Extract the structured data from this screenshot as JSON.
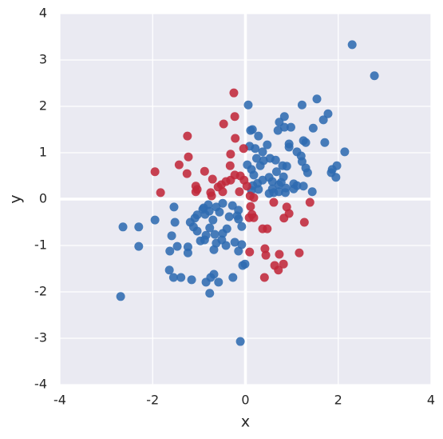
{
  "chart_data": {
    "type": "scatter",
    "x_label": "x",
    "y_label": "y",
    "xlim": [
      -4,
      4
    ],
    "ylim": [
      -4,
      4
    ],
    "xticks": [
      -4,
      -2,
      0,
      2,
      4
    ],
    "yticks": [
      -4,
      -3,
      -2,
      -1,
      0,
      1,
      2,
      3,
      4
    ],
    "xgrid": [
      -4,
      -2,
      0,
      2,
      4
    ],
    "grid": true,
    "zero_lines": true,
    "series": [
      {
        "color": "#2f6bb0",
        "x": [
          2.3,
          2.78,
          0.06,
          1.54,
          1.22,
          1.78,
          0.84,
          1.68,
          0.15,
          0.11,
          0.73,
          0.7,
          0.84,
          0.98,
          1.46,
          1.25,
          1.3,
          1.71,
          0.28,
          0.47,
          0.94,
          0.94,
          0.09,
          0.21,
          0.37,
          0.53,
          1.11,
          1.2,
          2.14,
          0.24,
          0.39,
          0.65,
          0.04,
          0.13,
          0.32,
          0.8,
          0.89,
          1.22,
          1.3,
          1.34,
          1.87,
          1.97,
          1.85,
          1.95,
          0.67,
          0.82,
          0.51,
          0.37,
          0.18,
          0.58,
          0.72,
          0.77,
          1.04,
          1.11,
          1.25,
          0.87,
          1.04,
          0.16,
          0.26,
          0.28,
          0.13,
          0.58,
          0.72,
          0.61,
          0.86,
          0.51,
          1.44,
          -0.9,
          -0.92,
          -0.8,
          -0.78,
          -0.63,
          -0.49,
          -0.28,
          -0.18,
          -0.15,
          -0.15,
          -0.35,
          -0.56,
          -0.7,
          -0.87,
          -1.04,
          -1.09,
          -1.19,
          -1.54,
          -1.52,
          -1.95,
          -2.64,
          -2.3,
          -2.3,
          -2.69,
          -1.59,
          -1.47,
          -1.63,
          -1.24,
          -1.24,
          -1.04,
          -0.97,
          -1.12,
          -0.77,
          -0.66,
          -0.49,
          -0.4,
          -0.08,
          -0.23,
          -0.08,
          -0.15,
          -0.51,
          -0.63,
          -0.42,
          -0.68,
          -0.85,
          -0.88,
          -0.01,
          -0.06,
          -1.64,
          -1.55,
          -1.39,
          -1.16,
          -0.68,
          -0.75,
          -0.85,
          -0.58,
          -0.27,
          -0.77,
          -0.11
        ],
        "y": [
          3.33,
          2.66,
          2.03,
          2.16,
          2.03,
          1.84,
          1.78,
          1.71,
          1.5,
          1.48,
          1.66,
          1.48,
          1.55,
          1.55,
          1.53,
          1.26,
          1.22,
          1.22,
          1.36,
          1.17,
          1.19,
          1.12,
          1.14,
          1.09,
          1.02,
          0.88,
          1.02,
          0.93,
          1.02,
          0.88,
          0.83,
          0.84,
          0.74,
          0.64,
          0.72,
          0.72,
          0.71,
          0.81,
          0.67,
          0.57,
          0.64,
          0.72,
          0.57,
          0.47,
          0.59,
          0.48,
          0.47,
          0.41,
          0.52,
          0.38,
          0.31,
          0.36,
          0.33,
          0.29,
          0.28,
          0.24,
          0.22,
          0.29,
          0.34,
          0.21,
          0.19,
          0.22,
          0.16,
          0.14,
          0.14,
          0.12,
          0.16,
          -0.19,
          -0.22,
          -0.12,
          -0.26,
          -0.17,
          -0.09,
          -0.14,
          -0.36,
          -0.24,
          -0.43,
          -0.38,
          -0.28,
          -0.45,
          -0.33,
          -0.34,
          -0.41,
          -0.5,
          -0.17,
          -0.5,
          -0.45,
          -0.6,
          -0.6,
          -1.02,
          -2.1,
          -0.79,
          -1.02,
          -1.12,
          -1.03,
          -1.16,
          -0.69,
          -0.9,
          -0.6,
          -0.62,
          -0.76,
          -0.74,
          -0.64,
          -0.59,
          -0.93,
          -0.98,
          -1.12,
          -0.88,
          -0.95,
          -1.0,
          -1.09,
          -0.78,
          -0.88,
          -1.4,
          -1.43,
          -1.53,
          -1.69,
          -1.69,
          -1.74,
          -1.62,
          -1.69,
          -1.79,
          -1.79,
          -1.69,
          -2.03,
          -3.07
        ]
      },
      {
        "color": "#c0283a",
        "x": [
          -0.25,
          -0.47,
          -0.23,
          -1.25,
          -0.22,
          -1.23,
          -0.32,
          -1.43,
          -0.33,
          -0.04,
          -1.95,
          -1.26,
          -0.88,
          -0.71,
          -1.83,
          -1.07,
          -1.04,
          -1.07,
          -0.75,
          -0.52,
          -0.42,
          -0.32,
          -0.23,
          -0.11,
          -0.03,
          -0.59,
          -0.13,
          -0.49,
          -0.73,
          0.03,
          0.1,
          0.18,
          0.11,
          0.14,
          0.08,
          0.18,
          0.61,
          0.89,
          0.94,
          0.83,
          1.39,
          1.27,
          0.37,
          0.47,
          0.09,
          0.42,
          0.44,
          0.73,
          1.16,
          0.63,
          0.82,
          0.71,
          0.41
        ],
        "y": [
          2.29,
          1.62,
          1.78,
          1.36,
          1.31,
          0.91,
          0.97,
          0.74,
          0.72,
          1.09,
          0.59,
          0.55,
          0.6,
          0.43,
          0.14,
          0.28,
          0.21,
          0.16,
          0.14,
          0.31,
          0.38,
          0.41,
          0.52,
          0.5,
          0.41,
          0.26,
          0.16,
          0.16,
          0.07,
          0.28,
          0.07,
          0.03,
          -0.16,
          -0.33,
          -0.4,
          -0.4,
          -0.07,
          -0.17,
          -0.31,
          -0.41,
          -0.07,
          -0.5,
          -0.64,
          -0.64,
          -1.14,
          -1.07,
          -1.21,
          -1.19,
          -1.16,
          -1.43,
          -1.4,
          -1.53,
          -1.69
        ]
      }
    ]
  }
}
